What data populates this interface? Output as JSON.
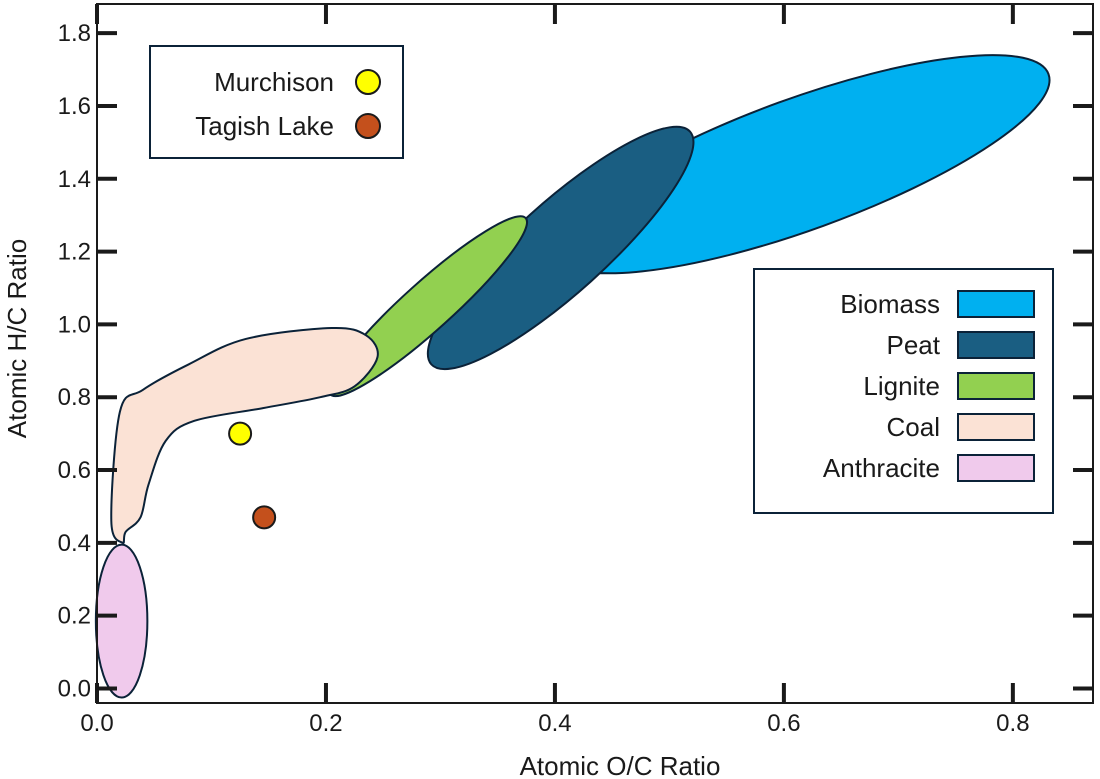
{
  "chart_data": {
    "type": "scatter",
    "title": "",
    "xlabel": "Atomic O/C Ratio",
    "ylabel": "Atomic H/C Ratio",
    "xlim": [
      0.0,
      0.87
    ],
    "ylim": [
      -0.04,
      1.88
    ],
    "x_ticks": [
      0.0,
      0.2,
      0.4,
      0.6,
      0.8
    ],
    "x_tick_labels": [
      "0.0",
      "0.2",
      "0.4",
      "0.6",
      "0.8"
    ],
    "y_ticks": [
      0.0,
      0.2,
      0.4,
      0.6,
      0.8,
      1.0,
      1.2,
      1.4,
      1.6,
      1.8
    ],
    "y_tick_labels": [
      "0.0",
      "0.2",
      "0.4",
      "0.6",
      "0.8",
      "1.0",
      "1.2",
      "1.4",
      "1.6",
      "1.8"
    ],
    "grid": false,
    "points": [
      {
        "name": "Murchison",
        "x": 0.125,
        "y": 0.7,
        "color": "#ffff00"
      },
      {
        "name": "Tagish Lake",
        "x": 0.146,
        "y": 0.47,
        "color": "#c4501c"
      }
    ],
    "regions": [
      {
        "name": "Biomass",
        "color": "#00b0f0",
        "cx": 0.615,
        "cy": 1.44,
        "rx": 0.23,
        "ry": 0.18,
        "angle_deg": -20
      },
      {
        "name": "Peat",
        "color": "#1a5e82",
        "cx": 0.405,
        "cy": 1.21,
        "rx": 0.152,
        "ry": 0.124,
        "angle_deg": -42
      },
      {
        "name": "Lignite",
        "color": "#92d050",
        "cx": 0.289,
        "cy": 1.05,
        "rx": 0.115,
        "ry": 0.066,
        "angle_deg": -42
      },
      {
        "name": "Coal",
        "color": "#fbe2d5",
        "points": [
          [
            0.0225,
            0.4
          ],
          [
            0.0125,
            0.46
          ],
          [
            0.02,
            0.76
          ],
          [
            0.04,
            0.82
          ],
          [
            0.08,
            0.89
          ],
          [
            0.13,
            0.96
          ],
          [
            0.205,
            0.99
          ],
          [
            0.235,
            0.97
          ],
          [
            0.245,
            0.91
          ],
          [
            0.225,
            0.83
          ],
          [
            0.195,
            0.8
          ],
          [
            0.145,
            0.77
          ],
          [
            0.085,
            0.735
          ],
          [
            0.06,
            0.68
          ],
          [
            0.045,
            0.56
          ],
          [
            0.038,
            0.47
          ],
          [
            0.025,
            0.43
          ]
        ]
      },
      {
        "name": "Anthracite",
        "color": "#f0caec",
        "cx": 0.0215,
        "cy": 0.185,
        "rx": 0.0225,
        "ry": 0.21,
        "angle_deg": 0
      }
    ],
    "points_legend": {
      "position": "top-left"
    },
    "regions_legend": {
      "position": "right"
    }
  }
}
